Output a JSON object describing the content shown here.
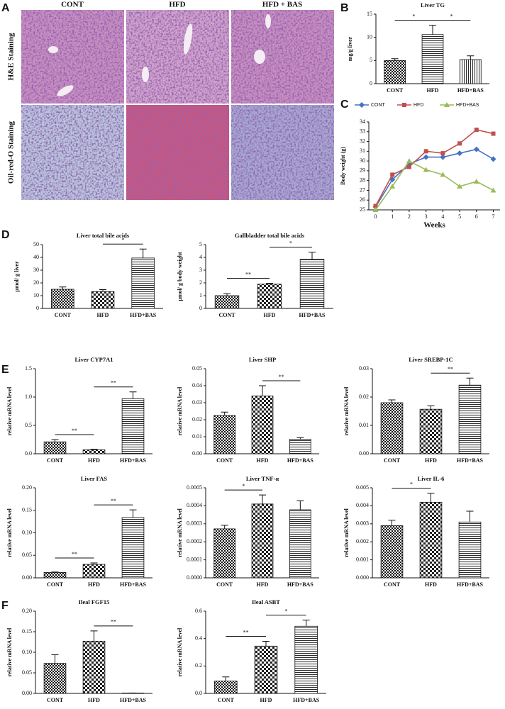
{
  "figure": {
    "panel_labels": [
      "A",
      "B",
      "C",
      "D",
      "E",
      "F"
    ],
    "histology": {
      "columns": [
        "CONT",
        "HFD",
        "HFD + BAS"
      ],
      "rows": [
        "H&E Staining",
        "Oil-red-O Staining"
      ]
    }
  },
  "chart_data": [
    {
      "type": "bar",
      "title": "Liver TG",
      "ylabel": "mg/g liver",
      "categories": [
        "CONT",
        "HFD",
        "HFD+BAS"
      ],
      "values": [
        5.0,
        10.6,
        5.2
      ],
      "error": [
        0.4,
        2.0,
        0.8
      ],
      "patterns": [
        "checker",
        "hlines",
        "vlines"
      ],
      "ylim": [
        0,
        15
      ],
      "yticks": [
        0,
        5,
        10,
        15
      ],
      "annotations": [
        {
          "text": "*",
          "pair": [
            0,
            1
          ]
        },
        {
          "text": "*",
          "pair": [
            1,
            2
          ]
        }
      ]
    },
    {
      "type": "line",
      "xlabel": "Weeks",
      "ylabel": "Body weight (g)",
      "x": [
        0,
        1,
        2,
        3,
        4,
        5,
        6,
        7
      ],
      "xlim": [
        -0.4,
        7.4
      ],
      "xticks": [
        0,
        1,
        2,
        3,
        4,
        5,
        6,
        7
      ],
      "ylim": [
        25,
        34
      ],
      "yticks": [
        25,
        26,
        27,
        28,
        29,
        30,
        31,
        32,
        33,
        34
      ],
      "legend": "top",
      "series": [
        {
          "name": "CONT",
          "color": "#4472c4",
          "marker": "diamond",
          "values": [
            25.3,
            28.1,
            29.7,
            30.4,
            30.4,
            30.8,
            31.2,
            30.2
          ]
        },
        {
          "name": "HFD",
          "color": "#c0504d",
          "marker": "square",
          "values": [
            25.4,
            28.6,
            29.4,
            31.0,
            30.8,
            31.8,
            33.2,
            32.8
          ]
        },
        {
          "name": "HFD+BAS",
          "color": "#9bbb59",
          "marker": "triangle",
          "values": [
            25.0,
            27.4,
            30.0,
            29.1,
            28.6,
            27.4,
            27.9,
            27.0
          ]
        }
      ]
    },
    {
      "type": "bar",
      "title": "Liver total bile acids",
      "ylabel": "μmol/ g liver",
      "categories": [
        "CONT",
        "HFD",
        "HFD+BAS"
      ],
      "values": [
        15,
        13.2,
        39.5
      ],
      "error": [
        1.8,
        1.5,
        7
      ],
      "patterns": [
        "checker",
        "checker2",
        "hlines"
      ],
      "ylim": [
        0,
        50
      ],
      "yticks": [
        0,
        10,
        20,
        30,
        40,
        50
      ],
      "annotations": [
        {
          "text": "*",
          "pair": [
            1,
            2
          ]
        }
      ]
    },
    {
      "type": "bar",
      "title": "Gallbladder total bile acids",
      "ylabel": "μmol/ g body weight",
      "categories": [
        "CONT",
        "HFD",
        "HFD+BAS"
      ],
      "values": [
        1.0,
        1.9,
        3.85
      ],
      "error": [
        0.15,
        0.07,
        0.55
      ],
      "patterns": [
        "checker",
        "checker2",
        "hlines"
      ],
      "ylim": [
        0,
        5
      ],
      "yticks": [
        0,
        1,
        2,
        3,
        4,
        5
      ],
      "annotations": [
        {
          "text": "**",
          "pair": [
            0,
            1
          ]
        },
        {
          "text": "*",
          "pair": [
            1,
            2
          ]
        }
      ]
    },
    {
      "type": "bar",
      "title": "Liver CYP7A1",
      "ylabel": "relative mRNA level",
      "categories": [
        "CONT",
        "HFD",
        "HFD+BAS"
      ],
      "values": [
        0.21,
        0.07,
        0.97
      ],
      "error": [
        0.04,
        0.01,
        0.12
      ],
      "patterns": [
        "checker",
        "checker2",
        "hlines"
      ],
      "ylim": [
        0,
        1.5
      ],
      "yticks": [
        {
          "value": 0,
          "label": "0.0"
        },
        0.5,
        {
          "value": 1,
          "label": "1.0"
        },
        1.5
      ],
      "annotations": [
        {
          "text": "**",
          "pair": [
            0,
            1
          ]
        },
        {
          "text": "**",
          "pair": [
            1,
            2
          ]
        }
      ]
    },
    {
      "type": "bar",
      "title": "Liver SHP",
      "ylabel": "relative mRNA level",
      "categories": [
        "CONT",
        "HFD",
        "HFD+BAS"
      ],
      "values": [
        0.0225,
        0.034,
        0.0085
      ],
      "error": [
        0.002,
        0.006,
        0.001
      ],
      "patterns": [
        "checker",
        "checker2",
        "hlines"
      ],
      "ylim": [
        0,
        0.05
      ],
      "yticks": [
        {
          "value": 0,
          "label": "0.00"
        },
        0.01,
        0.02,
        0.03,
        0.04,
        0.05
      ],
      "annotations": [
        {
          "text": "**",
          "pair": [
            1,
            2
          ]
        }
      ]
    },
    {
      "type": "bar",
      "title": "Liver SREBP-1C",
      "ylabel": "relative mRNA level",
      "categories": [
        "CONT",
        "HFD",
        "HFD+BAS"
      ],
      "values": [
        0.018,
        0.0157,
        0.0242
      ],
      "error": [
        0.001,
        0.0012,
        0.0025
      ],
      "patterns": [
        "checker",
        "checker2",
        "hlines"
      ],
      "ylim": [
        0,
        0.03
      ],
      "yticks": [
        {
          "value": 0,
          "label": "0.00"
        },
        0.01,
        0.02,
        0.03
      ],
      "annotations": [
        {
          "text": "**",
          "pair": [
            1,
            2
          ]
        }
      ]
    },
    {
      "type": "bar",
      "title": "Liver FAS",
      "ylabel": "relative mRNA level",
      "categories": [
        "CONT",
        "HFD",
        "HFD+BAS"
      ],
      "values": [
        0.012,
        0.03,
        0.134
      ],
      "error": [
        0.001,
        0.003,
        0.017
      ],
      "patterns": [
        "checker",
        "checker2",
        "hlines"
      ],
      "ylim": [
        0,
        0.2
      ],
      "yticks": [
        {
          "value": 0,
          "label": "0.00"
        },
        0.05,
        {
          "value": 0.1,
          "label": "0.10"
        },
        0.15,
        {
          "value": 0.2,
          "label": "0.20"
        }
      ],
      "annotations": [
        {
          "text": "**",
          "pair": [
            0,
            1
          ]
        },
        {
          "text": "**",
          "pair": [
            1,
            2
          ]
        }
      ]
    },
    {
      "type": "bar",
      "title": "Liver TNF-α",
      "ylabel": "relative mRNA level",
      "categories": [
        "CONT",
        "HFD",
        "HFD+BAS"
      ],
      "values": [
        0.000272,
        0.00041,
        0.000378
      ],
      "error": [
        2e-05,
        5e-05,
        5e-05
      ],
      "patterns": [
        "checker",
        "checker2",
        "hlines"
      ],
      "ylim": [
        0,
        0.0005
      ],
      "yticks": [
        {
          "value": 0,
          "label": "0.0000"
        },
        0.0001,
        0.0002,
        0.0003,
        0.0004,
        0.0005
      ],
      "annotations": [
        {
          "text": "*",
          "pair": [
            0,
            1
          ]
        }
      ]
    },
    {
      "type": "bar",
      "title": "Liver IL-6",
      "ylabel": "relative mRNA level",
      "categories": [
        "CONT",
        "HFD",
        "HFD+BAS"
      ],
      "values": [
        0.0029,
        0.0042,
        0.0031
      ],
      "error": [
        0.0003,
        0.0005,
        0.0006
      ],
      "patterns": [
        "checker",
        "checker2",
        "hlines"
      ],
      "ylim": [
        0,
        0.005
      ],
      "yticks": [
        {
          "value": 0,
          "label": "0.000"
        },
        0.001,
        0.002,
        0.003,
        0.004,
        0.005
      ],
      "annotations": [
        {
          "text": "*",
          "pair": [
            0,
            1
          ]
        }
      ]
    },
    {
      "type": "bar",
      "title": "Ileal FGF15",
      "ylabel": "relative mRNA level",
      "categories": [
        "CONT",
        "HFD",
        "HFD+BAS"
      ],
      "values": [
        0.073,
        0.127,
        0.001
      ],
      "error": [
        0.021,
        0.025,
        0
      ],
      "patterns": [
        "checker",
        "checker2",
        "hlines"
      ],
      "ylim": [
        0,
        0.2
      ],
      "yticks": [
        {
          "value": 0,
          "label": "0.00"
        },
        0.05,
        {
          "value": 0.1,
          "label": "0.10"
        },
        0.15,
        {
          "value": 0.2,
          "label": "0.20"
        }
      ],
      "annotations": [
        {
          "text": "**",
          "pair": [
            1,
            2
          ]
        }
      ]
    },
    {
      "type": "bar",
      "title": "Ileal ASBT",
      "ylabel": "relative mRNA level",
      "categories": [
        "CONT",
        "HFD",
        "HFD+BAS"
      ],
      "values": [
        0.09,
        0.345,
        0.49
      ],
      "error": [
        0.03,
        0.035,
        0.045
      ],
      "patterns": [
        "checker",
        "checker2",
        "hlines"
      ],
      "ylim": [
        0,
        0.6
      ],
      "yticks": [
        {
          "value": 0,
          "label": "0.0"
        },
        0.2,
        0.4,
        0.6
      ],
      "annotations": [
        {
          "text": "**",
          "pair": [
            0,
            1
          ]
        },
        {
          "text": "*",
          "pair": [
            1,
            2
          ]
        }
      ]
    }
  ]
}
